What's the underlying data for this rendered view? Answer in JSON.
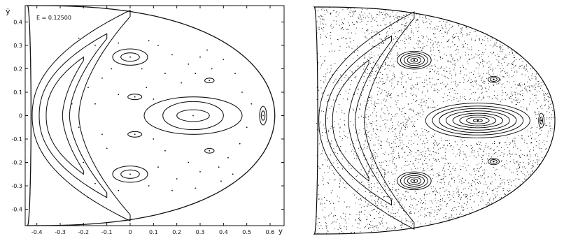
{
  "chart_data": [
    {
      "type": "scatter",
      "panel": "left",
      "annotation": "E = 0.12500",
      "xlabel": "y",
      "ylabel": "ẏ",
      "xlim": [
        -0.45,
        0.66
      ],
      "ylim": [
        -0.47,
        0.47
      ],
      "xticks": [
        "-0.4",
        "-0.3",
        "-0.2",
        "-0.1",
        "0",
        "0.1",
        "0.2",
        "0.3",
        "0.4",
        "0.5",
        "0.6"
      ],
      "xtick_values": [
        -0.4,
        -0.3,
        -0.2,
        -0.1,
        0,
        0.1,
        0.2,
        0.3,
        0.4,
        0.5,
        0.6
      ],
      "yticks": [
        "0.4",
        "0.3",
        "0.2",
        "0.1",
        "0",
        "-0.1",
        "-0.2",
        "-0.3",
        "-0.4"
      ],
      "ytick_values": [
        0.4,
        0.3,
        0.2,
        0.1,
        0,
        -0.1,
        -0.2,
        -0.3,
        -0.4
      ],
      "grid": false,
      "boundary": {
        "left_y": -0.44,
        "right_y": 0.62,
        "vertical_extent": 0.47
      },
      "islands": [
        {
          "center": [
            0.27,
            0.0
          ],
          "radii": [
            [
              0.07,
              0.025
            ],
            [
              0.13,
              0.06
            ],
            [
              0.21,
              0.08
            ]
          ]
        },
        {
          "center": [
            0.0,
            0.25
          ],
          "radii": [
            [
              0.04,
              0.018
            ],
            [
              0.075,
              0.035
            ]
          ]
        },
        {
          "center": [
            0.0,
            -0.25
          ],
          "radii": [
            [
              0.04,
              0.018
            ],
            [
              0.075,
              0.035
            ]
          ]
        },
        {
          "center": [
            0.57,
            0.0
          ],
          "radii": [
            [
              0.008,
              0.02
            ],
            [
              0.015,
              0.04
            ]
          ]
        },
        {
          "center": [
            0.34,
            0.15
          ],
          "radii": [
            [
              0.02,
              0.01
            ]
          ]
        },
        {
          "center": [
            0.34,
            -0.15
          ],
          "radii": [
            [
              0.02,
              0.01
            ]
          ]
        },
        {
          "center": [
            0.02,
            0.08
          ],
          "radii": [
            [
              0.03,
              0.012
            ]
          ]
        },
        {
          "center": [
            0.02,
            -0.08
          ],
          "radii": [
            [
              0.03,
              0.012
            ]
          ]
        }
      ],
      "crescent_bands": [
        {
          "left_y": -0.42,
          "inner_y": -0.22,
          "tip_y": 0.0,
          "top": 0.45,
          "bottom": -0.45
        },
        {
          "left_y": -0.39,
          "inner_y": -0.26,
          "tip_y": -0.1,
          "top": 0.35,
          "bottom": -0.35
        },
        {
          "left_y": -0.36,
          "inner_y": -0.29,
          "tip_y": -0.2,
          "top": 0.25,
          "bottom": -0.25
        }
      ],
      "chaotic_points": [
        [
          -0.22,
          0.33
        ],
        [
          -0.15,
          0.3
        ],
        [
          -0.05,
          0.31
        ],
        [
          0.08,
          0.32
        ],
        [
          0.18,
          0.26
        ],
        [
          0.25,
          0.22
        ],
        [
          0.3,
          0.25
        ],
        [
          0.35,
          0.2
        ],
        [
          0.4,
          0.24
        ],
        [
          0.45,
          0.18
        ],
        [
          0.28,
          0.18
        ],
        [
          0.22,
          0.14
        ],
        [
          0.15,
          0.18
        ],
        [
          -0.12,
          0.16
        ],
        [
          -0.18,
          0.12
        ],
        [
          0.07,
          0.12
        ],
        [
          -0.25,
          0.05
        ],
        [
          -0.22,
          -0.05
        ],
        [
          -0.15,
          0.05
        ],
        [
          -0.12,
          -0.08
        ],
        [
          -0.05,
          0.09
        ],
        [
          0.1,
          0.07
        ],
        [
          0.48,
          0.1
        ],
        [
          0.52,
          0.05
        ],
        [
          0.5,
          -0.05
        ],
        [
          0.47,
          -0.12
        ],
        [
          0.42,
          -0.18
        ],
        [
          0.38,
          -0.22
        ],
        [
          0.3,
          -0.24
        ],
        [
          0.25,
          -0.2
        ],
        [
          0.2,
          -0.27
        ],
        [
          0.12,
          -0.22
        ],
        [
          0.08,
          -0.3
        ],
        [
          -0.05,
          -0.32
        ],
        [
          -0.15,
          -0.29
        ],
        [
          -0.2,
          -0.2
        ],
        [
          -0.1,
          -0.14
        ],
        [
          0.15,
          -0.15
        ],
        [
          0.1,
          -0.1
        ],
        [
          0.33,
          0.28
        ],
        [
          0.39,
          -0.28
        ],
        [
          -0.08,
          0.2
        ],
        [
          0.05,
          0.2
        ],
        [
          0.18,
          -0.32
        ],
        [
          0.28,
          -0.31
        ],
        [
          0.44,
          -0.25
        ],
        [
          -0.18,
          -0.35
        ],
        [
          0.12,
          0.3
        ]
      ]
    },
    {
      "type": "scatter",
      "panel": "right",
      "style": "dense point cloud",
      "xlim": [
        -0.45,
        0.66
      ],
      "ylim": [
        -0.47,
        0.47
      ],
      "boundary": {
        "left_y": -0.44,
        "right_y": 0.62,
        "vertical_extent": 0.47
      },
      "islands": [
        {
          "center": [
            0.28,
            0.0
          ],
          "radii": [
            [
              0.02,
              0.006
            ],
            [
              0.05,
              0.014
            ],
            [
              0.08,
              0.022
            ],
            [
              0.11,
              0.03
            ],
            [
              0.14,
              0.04
            ],
            [
              0.17,
              0.05
            ],
            [
              0.2,
              0.06
            ],
            [
              0.23,
              0.072
            ]
          ]
        },
        {
          "center": [
            0.0,
            0.25
          ],
          "radii": [
            [
              0.015,
              0.008
            ],
            [
              0.03,
              0.015
            ],
            [
              0.045,
              0.022
            ],
            [
              0.06,
              0.03
            ],
            [
              0.075,
              0.037
            ]
          ]
        },
        {
          "center": [
            0.0,
            -0.25
          ],
          "radii": [
            [
              0.015,
              0.008
            ],
            [
              0.03,
              0.015
            ],
            [
              0.045,
              0.022
            ],
            [
              0.06,
              0.03
            ],
            [
              0.075,
              0.037
            ]
          ]
        },
        {
          "center": [
            0.56,
            0.0
          ],
          "radii": [
            [
              0.006,
              0.015
            ],
            [
              0.012,
              0.03
            ]
          ]
        },
        {
          "center": [
            0.35,
            0.17
          ],
          "radii": [
            [
              0.015,
              0.008
            ],
            [
              0.025,
              0.013
            ]
          ]
        },
        {
          "center": [
            0.35,
            -0.17
          ],
          "radii": [
            [
              0.015,
              0.008
            ],
            [
              0.025,
              0.013
            ]
          ]
        }
      ],
      "crescent_bands": [
        {
          "left_y": -0.42,
          "inner_y": -0.22,
          "tip_y": 0.0,
          "top": 0.45,
          "bottom": -0.45
        },
        {
          "left_y": -0.39,
          "inner_y": -0.26,
          "tip_y": -0.1,
          "top": 0.35,
          "bottom": -0.35
        },
        {
          "left_y": -0.36,
          "inner_y": -0.29,
          "tip_y": -0.2,
          "top": 0.25,
          "bottom": -0.25
        }
      ],
      "dense_point_count": 5200
    }
  ]
}
